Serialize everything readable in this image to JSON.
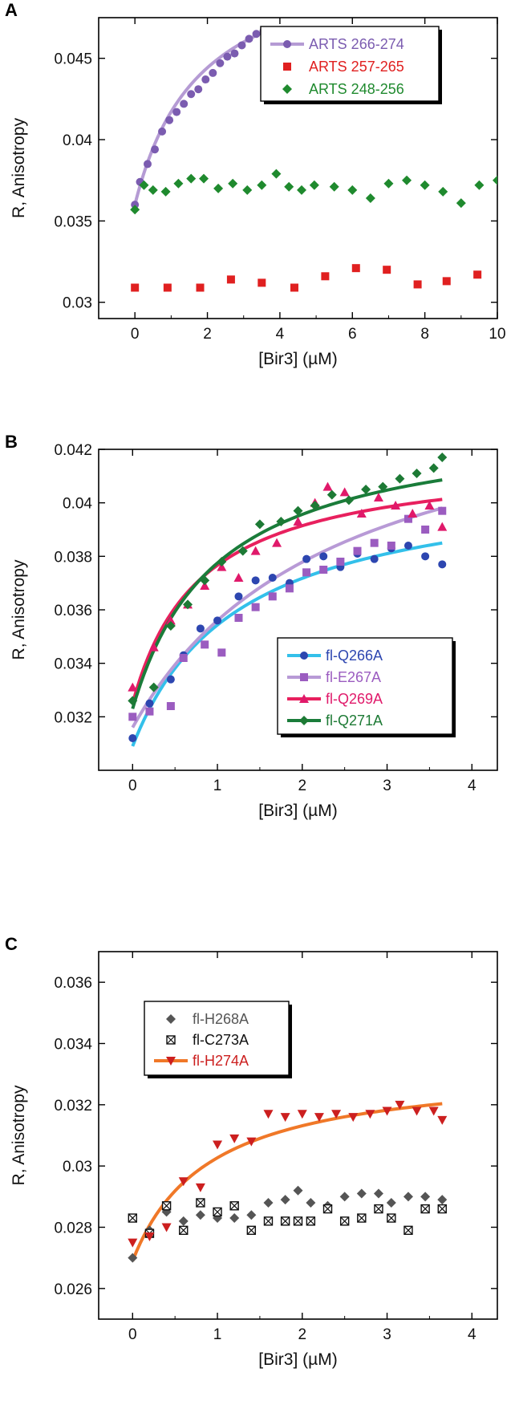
{
  "chart_data": [
    {
      "panel": "A",
      "type": "scatter",
      "xlabel": "[Bir3] (µM)",
      "ylabel": "R, Anisotropy",
      "xlim": [
        -1,
        10
      ],
      "ylim": [
        0.029,
        0.0475
      ],
      "xticks": [
        0,
        2,
        4,
        6,
        8,
        10
      ],
      "xtick_labels": [
        "0",
        "2",
        "4",
        "6",
        "8",
        "10"
      ],
      "yticks": [
        0.03,
        0.035,
        0.04,
        0.045
      ],
      "ytick_labels": [
        "0.03",
        "0.035",
        "0.04",
        "0.045"
      ],
      "legend_position": "top-right",
      "grid": false,
      "series": [
        {
          "name": "ARTS 266-274",
          "color": "#7b5cb0",
          "marker": "circle",
          "line": "fit",
          "fit_color": "#b59bd4",
          "x": [
            0,
            0.14,
            0.35,
            0.55,
            0.75,
            0.95,
            1.15,
            1.35,
            1.55,
            1.75,
            1.95,
            2.15,
            2.35,
            2.55,
            2.75,
            2.95,
            3.15,
            3.35,
            3.55,
            3.75
          ],
          "y": [
            0.036,
            0.0374,
            0.0385,
            0.0394,
            0.0405,
            0.0412,
            0.0417,
            0.0422,
            0.0428,
            0.0431,
            0.0437,
            0.0441,
            0.0447,
            0.0451,
            0.0453,
            0.0458,
            0.0462,
            0.0465,
            0.0467,
            0.0466
          ]
        },
        {
          "name": "ARTS 257-265",
          "color": "#e02020",
          "marker": "square",
          "line": "none",
          "x": [
            0,
            0.9,
            1.8,
            2.65,
            3.5,
            4.4,
            5.25,
            6.1,
            6.95,
            7.8,
            8.6,
            9.45
          ],
          "y": [
            0.0309,
            0.0309,
            0.0309,
            0.0314,
            0.0312,
            0.0309,
            0.0316,
            0.0321,
            0.032,
            0.0311,
            0.0313,
            0.0317
          ]
        },
        {
          "name": "ARTS 248-256",
          "color": "#1f8a2e",
          "marker": "diamond",
          "line": "none",
          "x": [
            0,
            0.25,
            0.5,
            0.85,
            1.2,
            1.55,
            1.9,
            2.3,
            2.7,
            3.1,
            3.5,
            3.9,
            4.25,
            4.6,
            4.95,
            5.5,
            6.0,
            6.5,
            7.0,
            7.5,
            8.0,
            8.5,
            9.0,
            9.5,
            10.0
          ],
          "y": [
            0.0357,
            0.0372,
            0.0369,
            0.0368,
            0.0373,
            0.0376,
            0.0376,
            0.037,
            0.0373,
            0.0369,
            0.0372,
            0.0379,
            0.0371,
            0.0369,
            0.0372,
            0.0371,
            0.0369,
            0.0364,
            0.0373,
            0.0375,
            0.0372,
            0.0368,
            0.0361,
            0.0372,
            0.0375
          ]
        }
      ]
    },
    {
      "panel": "B",
      "type": "scatter",
      "xlabel": "[Bir3] (µM)",
      "ylabel": "R, Anisotropy",
      "xlim": [
        -0.4,
        4.3
      ],
      "ylim": [
        0.03,
        0.042
      ],
      "xticks": [
        0,
        1,
        2,
        3,
        4
      ],
      "xtick_labels": [
        "0",
        "1",
        "2",
        "3",
        "4"
      ],
      "yticks": [
        0.032,
        0.034,
        0.036,
        0.038,
        0.04,
        0.042
      ],
      "ytick_labels": [
        "0.032",
        "0.034",
        "0.036",
        "0.038",
        "0.04",
        "0.042"
      ],
      "legend_position": "bottom-right",
      "grid": false,
      "series": [
        {
          "name": "fl-Q266A",
          "color": "#2d46b0",
          "marker": "circle",
          "fit_color": "#33c0ea",
          "x": [
            0,
            0.2,
            0.45,
            0.6,
            0.8,
            1.0,
            1.25,
            1.45,
            1.65,
            1.85,
            2.05,
            2.25,
            2.45,
            2.65,
            2.85,
            3.05,
            3.25,
            3.45,
            3.65
          ],
          "y": [
            0.0312,
            0.0325,
            0.0334,
            0.0343,
            0.0353,
            0.0356,
            0.0365,
            0.0371,
            0.0372,
            0.037,
            0.0379,
            0.038,
            0.0376,
            0.0381,
            0.0379,
            0.0383,
            0.0384,
            0.038,
            0.0377
          ]
        },
        {
          "name": "fl-E267A",
          "color": "#9b5cc0",
          "marker": "square",
          "fit_color": "#b89ad6",
          "x": [
            0,
            0.2,
            0.45,
            0.6,
            0.85,
            1.05,
            1.25,
            1.45,
            1.65,
            1.85,
            2.05,
            2.25,
            2.45,
            2.65,
            2.85,
            3.05,
            3.25,
            3.45,
            3.65
          ],
          "y": [
            0.032,
            0.0322,
            0.0324,
            0.0342,
            0.0347,
            0.0344,
            0.0357,
            0.0361,
            0.0365,
            0.0368,
            0.0374,
            0.0375,
            0.0378,
            0.0382,
            0.0385,
            0.0384,
            0.0394,
            0.039,
            0.0397
          ]
        },
        {
          "name": "fl-Q269A",
          "color": "#e0196a",
          "marker": "triangle",
          "fit_color": "#e8205e",
          "x": [
            0,
            0.25,
            0.45,
            0.65,
            0.85,
            1.05,
            1.25,
            1.45,
            1.7,
            1.95,
            2.15,
            2.3,
            2.5,
            2.7,
            2.9,
            3.1,
            3.3,
            3.5,
            3.65
          ],
          "y": [
            0.0331,
            0.0346,
            0.0356,
            0.0362,
            0.0369,
            0.0376,
            0.0372,
            0.0382,
            0.0385,
            0.0393,
            0.04,
            0.0406,
            0.0404,
            0.0396,
            0.0402,
            0.0399,
            0.0396,
            0.0399,
            0.0391
          ]
        },
        {
          "name": "fl-Q271A",
          "color": "#1d7a35",
          "marker": "diamond",
          "fit_color": "#1a7c3a",
          "x": [
            0,
            0.25,
            0.45,
            0.65,
            0.85,
            1.05,
            1.3,
            1.5,
            1.75,
            1.95,
            2.15,
            2.35,
            2.55,
            2.75,
            2.95,
            3.15,
            3.35,
            3.55,
            3.65
          ],
          "y": [
            0.0326,
            0.0331,
            0.0354,
            0.0362,
            0.0371,
            0.0378,
            0.0382,
            0.0392,
            0.0393,
            0.0397,
            0.0399,
            0.0403,
            0.0401,
            0.0405,
            0.0406,
            0.0409,
            0.0411,
            0.0413,
            0.0417
          ]
        }
      ]
    },
    {
      "panel": "C",
      "type": "scatter",
      "xlabel": "[Bir3] (µM)",
      "ylabel": "R, Anisotropy",
      "xlim": [
        -0.4,
        4.3
      ],
      "ylim": [
        0.025,
        0.037
      ],
      "xticks": [
        0,
        1,
        2,
        3,
        4
      ],
      "xtick_labels": [
        "0",
        "1",
        "2",
        "3",
        "4"
      ],
      "yticks": [
        0.026,
        0.028,
        0.03,
        0.032,
        0.034,
        0.036
      ],
      "ytick_labels": [
        "0.026",
        "0.028",
        "0.03",
        "0.032",
        "0.034",
        "0.036"
      ],
      "legend_position": "top-left",
      "grid": false,
      "series": [
        {
          "name": "fl-H268A",
          "color": "#555555",
          "marker": "diamond",
          "x": [
            0,
            0.2,
            0.4,
            0.6,
            0.8,
            1.0,
            1.2,
            1.4,
            1.6,
            1.8,
            1.95,
            2.1,
            2.3,
            2.5,
            2.7,
            2.9,
            3.05,
            3.25,
            3.45,
            3.65
          ],
          "y": [
            0.027,
            0.0279,
            0.0285,
            0.0282,
            0.0284,
            0.0283,
            0.0283,
            0.0284,
            0.0288,
            0.0289,
            0.0292,
            0.0288,
            0.0287,
            0.029,
            0.0291,
            0.0291,
            0.0288,
            0.029,
            0.029,
            0.0289
          ]
        },
        {
          "name": "fl-C273A",
          "color": "#111111",
          "marker": "boxed-x",
          "x": [
            0,
            0.2,
            0.4,
            0.6,
            0.8,
            1.0,
            1.2,
            1.4,
            1.6,
            1.8,
            1.95,
            2.1,
            2.3,
            2.5,
            2.7,
            2.9,
            3.05,
            3.25,
            3.45,
            3.65
          ],
          "y": [
            0.0283,
            0.0278,
            0.0287,
            0.0279,
            0.0288,
            0.0285,
            0.0287,
            0.0279,
            0.0282,
            0.0282,
            0.0282,
            0.0282,
            0.0286,
            0.0282,
            0.0283,
            0.0286,
            0.0283,
            0.0279,
            0.0286,
            0.0286
          ]
        },
        {
          "name": "fl-H274A",
          "color": "#cc1f1f",
          "marker": "triangle-down",
          "fit_color": "#f07828",
          "x": [
            0,
            0.2,
            0.4,
            0.6,
            0.8,
            1.0,
            1.2,
            1.4,
            1.6,
            1.8,
            2.0,
            2.2,
            2.4,
            2.6,
            2.8,
            3.0,
            3.15,
            3.35,
            3.55,
            3.65
          ],
          "y": [
            0.0275,
            0.0277,
            0.028,
            0.0295,
            0.0293,
            0.0307,
            0.0309,
            0.0308,
            0.0317,
            0.0316,
            0.0317,
            0.0316,
            0.0317,
            0.0316,
            0.0317,
            0.0318,
            0.032,
            0.0318,
            0.0318,
            0.0315
          ]
        }
      ]
    }
  ],
  "fits": {
    "A": [
      {
        "series": 0,
        "A": 0.036,
        "B": 0.016,
        "K": 1.8,
        "xmax": 3.75
      }
    ],
    "B": [
      {
        "series": 0,
        "A": 0.0309,
        "B": 0.0102,
        "K": 1.25,
        "xmax": 3.65
      },
      {
        "series": 1,
        "A": 0.0316,
        "B": 0.0136,
        "K": 2.4,
        "xmax": 3.65
      },
      {
        "series": 2,
        "A": 0.0325,
        "B": 0.0093,
        "K": 0.8,
        "xmax": 3.65
      },
      {
        "series": 3,
        "A": 0.0323,
        "B": 0.0109,
        "K": 1.0,
        "xmax": 3.65
      }
    ],
    "C": [
      {
        "series": 2,
        "A": 0.0269,
        "B": 0.0064,
        "K": 0.9,
        "xmax": 3.65
      }
    ]
  }
}
